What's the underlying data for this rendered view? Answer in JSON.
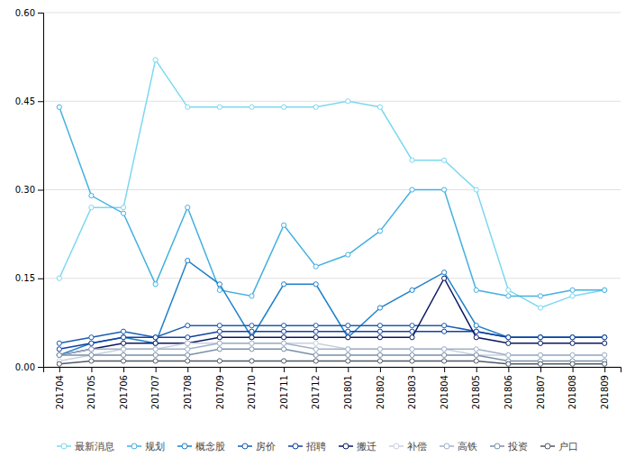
{
  "chart_data": {
    "type": "line",
    "categories": [
      "201704",
      "201705",
      "201706",
      "201707",
      "201708",
      "201709",
      "201710",
      "201711",
      "201712",
      "201801",
      "201802",
      "201803",
      "201804",
      "201805",
      "201806",
      "201807",
      "201808",
      "201809"
    ],
    "series": [
      {
        "name": "最新消息",
        "color": "#7DD8F0",
        "values": [
          0.15,
          0.27,
          0.27,
          0.52,
          0.44,
          0.44,
          0.44,
          0.44,
          0.44,
          0.45,
          0.44,
          0.35,
          0.35,
          0.3,
          0.13,
          0.1,
          0.12,
          0.13
        ]
      },
      {
        "name": "规划",
        "color": "#45B0E0",
        "values": [
          0.44,
          0.29,
          0.26,
          0.14,
          0.27,
          0.13,
          0.12,
          0.24,
          0.17,
          0.19,
          0.23,
          0.3,
          0.3,
          0.13,
          0.12,
          0.12,
          0.13,
          0.13
        ]
      },
      {
        "name": "概念股",
        "color": "#2080C8",
        "values": [
          0.02,
          0.04,
          0.05,
          0.04,
          0.18,
          0.14,
          0.05,
          0.14,
          0.14,
          0.05,
          0.1,
          0.13,
          0.16,
          0.07,
          0.05,
          0.05,
          0.05,
          0.05
        ]
      },
      {
        "name": "房价",
        "color": "#1A5CB0",
        "values": [
          0.04,
          0.05,
          0.06,
          0.05,
          0.07,
          0.07,
          0.07,
          0.07,
          0.07,
          0.07,
          0.07,
          0.07,
          0.07,
          0.06,
          0.05,
          0.05,
          0.05,
          0.05
        ]
      },
      {
        "name": "招聘",
        "color": "#1040A0",
        "values": [
          0.03,
          0.04,
          0.05,
          0.05,
          0.05,
          0.06,
          0.06,
          0.06,
          0.06,
          0.06,
          0.06,
          0.06,
          0.06,
          0.06,
          0.05,
          0.05,
          0.05,
          0.05
        ]
      },
      {
        "name": "搬迁",
        "color": "#0A1860",
        "values": [
          0.02,
          0.03,
          0.04,
          0.04,
          0.04,
          0.05,
          0.05,
          0.05,
          0.05,
          0.05,
          0.05,
          0.05,
          0.15,
          0.05,
          0.04,
          0.04,
          0.04,
          0.04
        ]
      },
      {
        "name": "补偿",
        "color": "#C8D0E0",
        "values": [
          0.01,
          0.02,
          0.03,
          0.03,
          0.04,
          0.04,
          0.04,
          0.04,
          0.04,
          0.03,
          0.03,
          0.03,
          0.03,
          0.02,
          0.02,
          0.02,
          0.02,
          0.02
        ]
      },
      {
        "name": "高铁",
        "color": "#A0B0C8",
        "values": [
          0.02,
          0.03,
          0.03,
          0.03,
          0.03,
          0.04,
          0.04,
          0.04,
          0.03,
          0.03,
          0.03,
          0.03,
          0.03,
          0.03,
          0.02,
          0.02,
          0.02,
          0.02
        ]
      },
      {
        "name": "投资",
        "color": "#7890A8",
        "values": [
          0.02,
          0.02,
          0.02,
          0.02,
          0.02,
          0.03,
          0.03,
          0.03,
          0.02,
          0.02,
          0.02,
          0.02,
          0.02,
          0.02,
          0.01,
          0.01,
          0.01,
          0.01
        ]
      },
      {
        "name": "户口",
        "color": "#505868",
        "values": [
          0.005,
          0.01,
          0.01,
          0.01,
          0.01,
          0.01,
          0.01,
          0.01,
          0.01,
          0.01,
          0.01,
          0.01,
          0.01,
          0.01,
          0.005,
          0.005,
          0.005,
          0.005
        ]
      }
    ],
    "ylim": [
      0,
      0.6
    ],
    "yticks": [
      {
        "value": 0,
        "label": "0.00"
      },
      0.15,
      {
        "value": 0.3,
        "label": "0.30"
      },
      0.45,
      {
        "value": 0.6,
        "label": "0.60"
      }
    ],
    "grid": true,
    "legend": "bottom",
    "marker": "circle"
  }
}
